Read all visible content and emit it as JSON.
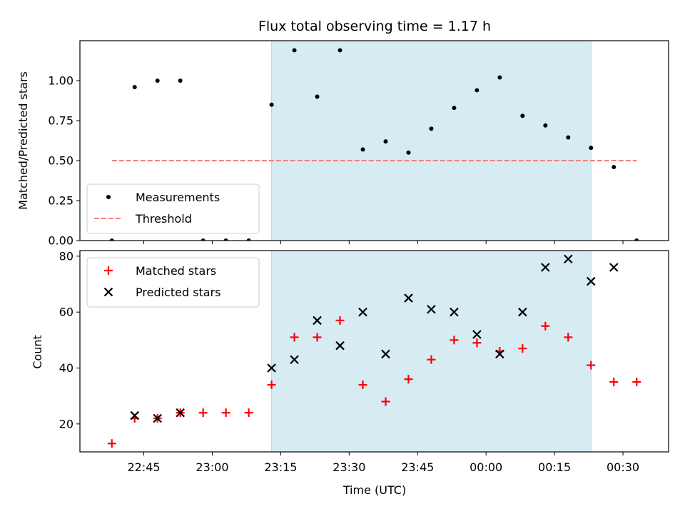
{
  "chart_data": [
    {
      "type": "scatter",
      "title": "Flux total observing time = 1.17 h",
      "ylabel": "Matched/Predicted stars",
      "ylim": [
        0,
        1.25
      ],
      "yticks": [
        "0.00",
        "0.25",
        "0.50",
        "0.75",
        "1.00"
      ],
      "x_range": [
        "22:31",
        "00:40"
      ],
      "highlight_span": [
        "23:13",
        "00:23"
      ],
      "highlight_color": "#add8e6",
      "legend_position": "lower left",
      "series": [
        {
          "name": "Measurements",
          "marker": "dot",
          "color": "#000000",
          "points": [
            [
              "22:38",
              0.0
            ],
            [
              "22:43",
              0.96
            ],
            [
              "22:48",
              1.0
            ],
            [
              "22:53",
              1.0
            ],
            [
              "22:58",
              0.0
            ],
            [
              "23:03",
              0.0
            ],
            [
              "23:08",
              0.0
            ],
            [
              "23:13",
              0.85
            ],
            [
              "23:18",
              1.19
            ],
            [
              "23:23",
              0.9
            ],
            [
              "23:28",
              1.19
            ],
            [
              "23:33",
              0.57
            ],
            [
              "23:38",
              0.62
            ],
            [
              "23:43",
              0.55
            ],
            [
              "23:48",
              0.7
            ],
            [
              "23:53",
              0.83
            ],
            [
              "23:58",
              0.94
            ],
            [
              "00:03",
              1.02
            ],
            [
              "00:08",
              0.78
            ],
            [
              "00:13",
              0.72
            ],
            [
              "00:18",
              0.645
            ],
            [
              "00:23",
              0.58
            ],
            [
              "00:28",
              0.46
            ],
            [
              "00:33",
              0.0
            ]
          ]
        },
        {
          "name": "Threshold",
          "style": "dashed",
          "color": "#f08080",
          "points": [
            [
              "22:38",
              0.5
            ],
            [
              "00:33",
              0.5
            ]
          ]
        }
      ]
    },
    {
      "type": "scatter",
      "xlabel": "Time (UTC)",
      "ylabel": "Count",
      "ylim": [
        10,
        82
      ],
      "yticks": [
        "20",
        "40",
        "60",
        "80"
      ],
      "xticks": [
        "22:45",
        "23:00",
        "23:15",
        "23:30",
        "23:45",
        "00:00",
        "00:15",
        "00:30"
      ],
      "x_range": [
        "22:31",
        "00:40"
      ],
      "highlight_span": [
        "23:13",
        "00:23"
      ],
      "highlight_color": "#add8e6",
      "legend_position": "upper left",
      "series": [
        {
          "name": "Matched stars",
          "marker": "plus",
          "color": "#ff0000",
          "points": [
            [
              "22:38",
              13
            ],
            [
              "22:43",
              22
            ],
            [
              "22:48",
              22
            ],
            [
              "22:53",
              24
            ],
            [
              "22:58",
              24
            ],
            [
              "23:03",
              24
            ],
            [
              "23:08",
              24
            ],
            [
              "23:13",
              34
            ],
            [
              "23:18",
              51
            ],
            [
              "23:23",
              51
            ],
            [
              "23:28",
              57
            ],
            [
              "23:33",
              34
            ],
            [
              "23:38",
              28
            ],
            [
              "23:43",
              36
            ],
            [
              "23:48",
              43
            ],
            [
              "23:53",
              50
            ],
            [
              "23:58",
              49
            ],
            [
              "00:03",
              46
            ],
            [
              "00:08",
              47
            ],
            [
              "00:13",
              55
            ],
            [
              "00:18",
              51
            ],
            [
              "00:23",
              41
            ],
            [
              "00:28",
              35
            ],
            [
              "00:33",
              35
            ]
          ]
        },
        {
          "name": "Predicted stars",
          "marker": "x",
          "color": "#000000",
          "points": [
            [
              "22:43",
              23
            ],
            [
              "22:48",
              22
            ],
            [
              "22:53",
              24
            ],
            [
              "23:13",
              40
            ],
            [
              "23:18",
              43
            ],
            [
              "23:23",
              57
            ],
            [
              "23:28",
              48
            ],
            [
              "23:33",
              60
            ],
            [
              "23:38",
              45
            ],
            [
              "23:43",
              65
            ],
            [
              "23:48",
              61
            ],
            [
              "23:53",
              60
            ],
            [
              "23:58",
              52
            ],
            [
              "00:03",
              45
            ],
            [
              "00:08",
              60
            ],
            [
              "00:13",
              76
            ],
            [
              "00:18",
              79
            ],
            [
              "00:23",
              71
            ],
            [
              "00:28",
              76
            ]
          ]
        }
      ]
    }
  ]
}
